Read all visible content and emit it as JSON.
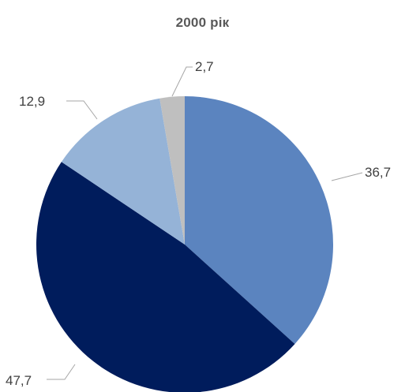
{
  "chart_data": {
    "type": "pie",
    "title": "2000 рік",
    "categories": [
      "",
      "",
      "",
      ""
    ],
    "values": [
      36.7,
      47.7,
      12.9,
      2.7
    ],
    "data_labels": [
      "36,7",
      "47,7",
      "12,9",
      "2,7"
    ],
    "colors": [
      "#5b84bf",
      "#001c5c",
      "#95b3d7",
      "#bfbfbf"
    ],
    "start_angle_deg": 0,
    "direction": "clockwise",
    "legend": "none"
  }
}
